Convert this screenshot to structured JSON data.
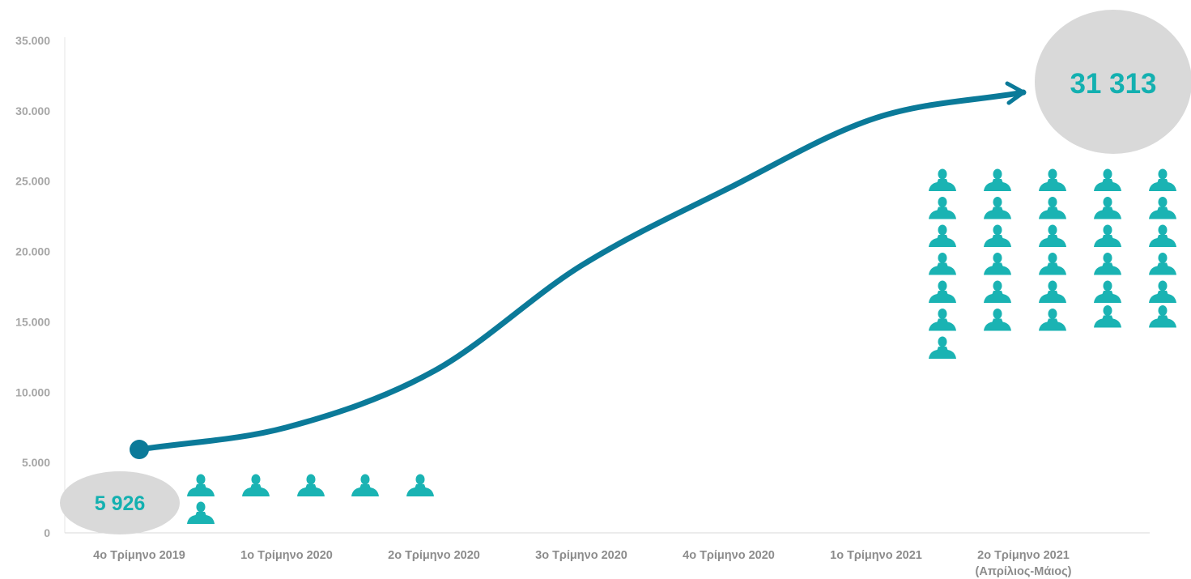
{
  "chart_data": {
    "type": "line",
    "title": "",
    "xlabel": "",
    "ylabel": "",
    "ylim": [
      0,
      35000
    ],
    "y_ticks": [
      "0",
      "5.000",
      "10.000",
      "15.000",
      "20.000",
      "25.000",
      "30.000",
      "35.000"
    ],
    "y_tick_values": [
      0,
      5000,
      10000,
      15000,
      20000,
      25000,
      30000,
      35000
    ],
    "categories": [
      "4ο Τρίμηνο 2019",
      "1ο Τρίμηνο 2020",
      "2ο Τρίμηνο 2020",
      "3ο Τρίμηνο 2020",
      "4ο Τρίμηνο 2020",
      "1ο Τρίμηνο 2021",
      "2ο Τρίμηνο 2021"
    ],
    "category_sublabels": [
      "",
      "",
      "",
      "",
      "",
      "",
      "(Απρίλιος-Μάιος)"
    ],
    "series": [
      {
        "values": [
          5926,
          7500,
          11500,
          19000,
          24500,
          29500,
          31313
        ]
      }
    ],
    "start_label": "5 926",
    "end_label": "31 313",
    "start_icon_count": 6,
    "end_icon_count": 31,
    "grid": false,
    "colors": {
      "line": "#0b7a99",
      "icon": "#1ab3b3",
      "bubble": "#d9d9d9",
      "label": "#13b0b0",
      "axis": "#d9d9d9"
    },
    "icon": "person-icon"
  }
}
